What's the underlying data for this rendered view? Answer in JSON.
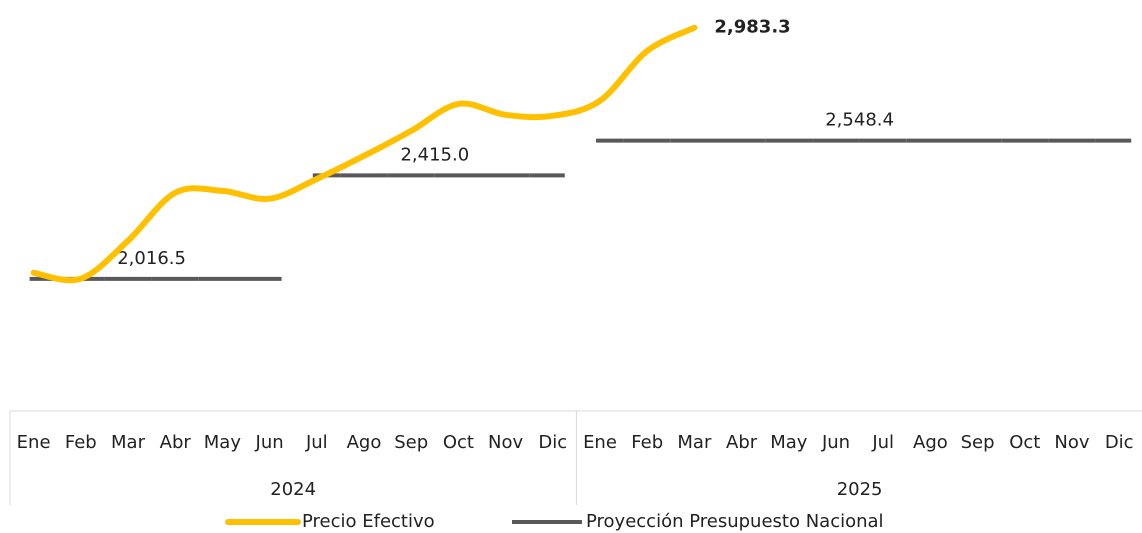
{
  "chart_data": {
    "type": "line",
    "categories": [
      "Ene",
      "Feb",
      "Mar",
      "Abr",
      "May",
      "Jun",
      "Jul",
      "Ago",
      "Sep",
      "Oct",
      "Nov",
      "Dic",
      "Ene",
      "Feb",
      "Mar",
      "Abr",
      "May",
      "Jun",
      "Jul",
      "Ago",
      "Sep",
      "Oct",
      "Nov",
      "Dic"
    ],
    "years": [
      "2024",
      "2025"
    ],
    "ylim": [
      1550,
      3090
    ],
    "legend": "bottom",
    "series": [
      {
        "name": "Precio Efectivo",
        "color": "#ffc000",
        "smooth": true,
        "values": [
          2040,
          2017,
          2163,
          2348,
          2355,
          2325,
          2401,
          2490,
          2586,
          2690,
          2648,
          2644,
          2702,
          2894,
          2983.3,
          null,
          null,
          null,
          null,
          null,
          null,
          null,
          null,
          null
        ],
        "value_labels": [
          null,
          null,
          null,
          null,
          null,
          null,
          null,
          null,
          null,
          null,
          null,
          null,
          null,
          null,
          "2,983.3",
          null,
          null,
          null,
          null,
          null,
          null,
          null,
          null,
          null
        ]
      },
      {
        "name": "Proyección Presupuesto Nacional",
        "color": "#595959",
        "step": true,
        "values": [
          2016.5,
          2016.5,
          2016.5,
          2016.5,
          2016.5,
          2016.5,
          2415.0,
          2415.0,
          2415.0,
          2415.0,
          2415.0,
          2415.0,
          2548.4,
          2548.4,
          2548.4,
          2548.4,
          2548.4,
          2548.4,
          2548.4,
          2548.4,
          2548.4,
          2548.4,
          2548.4,
          2548.4
        ],
        "value_labels": [
          "2,016.5",
          null,
          null,
          null,
          null,
          null,
          "2,415.0",
          null,
          null,
          null,
          null,
          null,
          null,
          null,
          null,
          null,
          null,
          null,
          "2,548.4",
          null,
          null,
          null,
          null,
          null
        ]
      }
    ]
  }
}
